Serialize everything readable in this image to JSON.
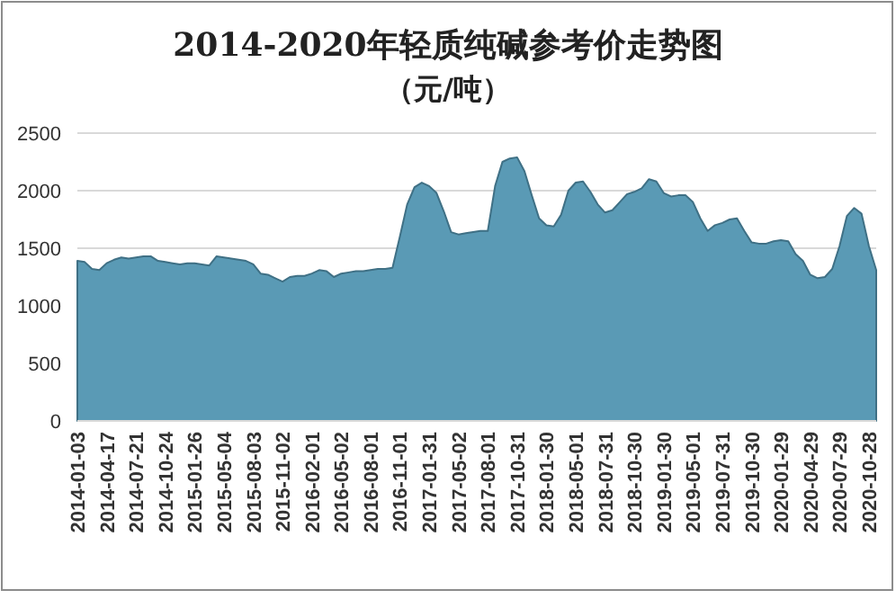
{
  "chart_data": {
    "type": "area",
    "title": "2014-2020年轻质纯碱参考价走势图",
    "subtitle": "（元/吨）",
    "categories": [
      "2014-01-03",
      null,
      null,
      null,
      "2014-04-17",
      null,
      null,
      null,
      "2014-07-21",
      null,
      null,
      null,
      "2014-10-24",
      null,
      null,
      null,
      "2015-01-26",
      null,
      null,
      null,
      "2015-05-04",
      null,
      null,
      null,
      "2015-08-03",
      null,
      null,
      null,
      "2015-11-02",
      null,
      null,
      null,
      "2016-02-01",
      null,
      null,
      null,
      "2016-05-02",
      null,
      null,
      null,
      "2016-08-01",
      null,
      null,
      null,
      "2016-11-01",
      null,
      null,
      null,
      "2017-01-31",
      null,
      null,
      null,
      "2017-05-02",
      null,
      null,
      null,
      "2017-08-01",
      null,
      null,
      null,
      "2017-10-31",
      null,
      null,
      null,
      "2018-01-30",
      null,
      null,
      null,
      "2018-05-01",
      null,
      null,
      null,
      "2018-07-31",
      null,
      null,
      null,
      "2018-10-30",
      null,
      null,
      null,
      "2019-01-30",
      null,
      null,
      null,
      "2019-05-01",
      null,
      null,
      null,
      "2019-07-31",
      null,
      null,
      null,
      "2019-10-30",
      null,
      null,
      null,
      "2020-01-29",
      null,
      null,
      null,
      "2020-04-29",
      null,
      null,
      null,
      "2020-07-29",
      null,
      null,
      null,
      "2020-10-28",
      null
    ],
    "values": [
      1390,
      1380,
      1320,
      1310,
      1370,
      1400,
      1420,
      1410,
      1420,
      1430,
      1430,
      1390,
      1380,
      1370,
      1360,
      1370,
      1370,
      1360,
      1350,
      1430,
      1420,
      1410,
      1400,
      1390,
      1360,
      1280,
      1270,
      1240,
      1210,
      1250,
      1260,
      1260,
      1280,
      1310,
      1300,
      1250,
      1280,
      1290,
      1300,
      1300,
      1310,
      1320,
      1320,
      1330,
      1600,
      1880,
      2030,
      2070,
      2040,
      1980,
      1820,
      1640,
      1620,
      1630,
      1640,
      1650,
      1650,
      2040,
      2250,
      2280,
      2290,
      2170,
      1960,
      1760,
      1700,
      1690,
      1790,
      2000,
      2070,
      2080,
      1990,
      1880,
      1810,
      1830,
      1900,
      1970,
      1990,
      2020,
      2100,
      2080,
      1980,
      1950,
      1960,
      1960,
      1900,
      1760,
      1650,
      1700,
      1720,
      1750,
      1760,
      1650,
      1550,
      1540,
      1540,
      1560,
      1570,
      1560,
      1450,
      1390,
      1270,
      1240,
      1250,
      1320,
      1520,
      1780,
      1850,
      1800,
      1520,
      1310
    ],
    "color": "#5a9ab5",
    "ylim": [
      0,
      2500
    ],
    "yticks": [
      0,
      500,
      1000,
      1500,
      2000,
      2500
    ],
    "grid": "y"
  }
}
